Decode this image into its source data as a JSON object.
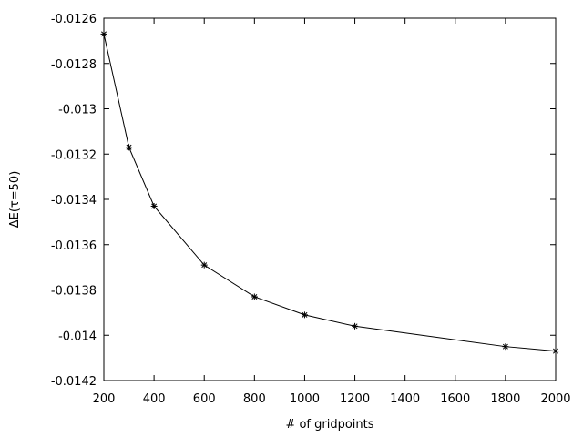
{
  "chart_data": {
    "type": "line",
    "title": "",
    "xlabel": "# of gridpoints",
    "ylabel": "ΔE(τ=50)",
    "xlim": [
      200,
      2000
    ],
    "ylim": [
      -0.0142,
      -0.0126
    ],
    "grid": false,
    "legend": "none",
    "marker": "asterisk",
    "line_color": "#000000",
    "x_ticks": [
      200,
      400,
      600,
      800,
      1000,
      1200,
      1400,
      1600,
      1800,
      2000
    ],
    "x_tick_labels": [
      "200",
      "400",
      "600",
      "800",
      "1000",
      "1200",
      "1400",
      "1600",
      "1800",
      "2000"
    ],
    "y_ticks": [
      -0.0126,
      -0.0128,
      -0.013,
      -0.0132,
      -0.0134,
      -0.0136,
      -0.0138,
      -0.014,
      -0.0142
    ],
    "y_tick_labels": [
      "-0.0126",
      "-0.0128",
      "-0.013",
      "-0.0132",
      "-0.0134",
      "-0.0136",
      "-0.0138",
      "-0.014",
      "-0.0142"
    ],
    "series": [
      {
        "x": [
          200,
          300,
          400,
          600,
          800,
          1000,
          1200,
          1800,
          2000
        ],
        "y": [
          -0.01267,
          -0.01317,
          -0.01343,
          -0.01369,
          -0.01383,
          -0.01391,
          -0.01396,
          -0.01405,
          -0.01407
        ]
      }
    ]
  }
}
